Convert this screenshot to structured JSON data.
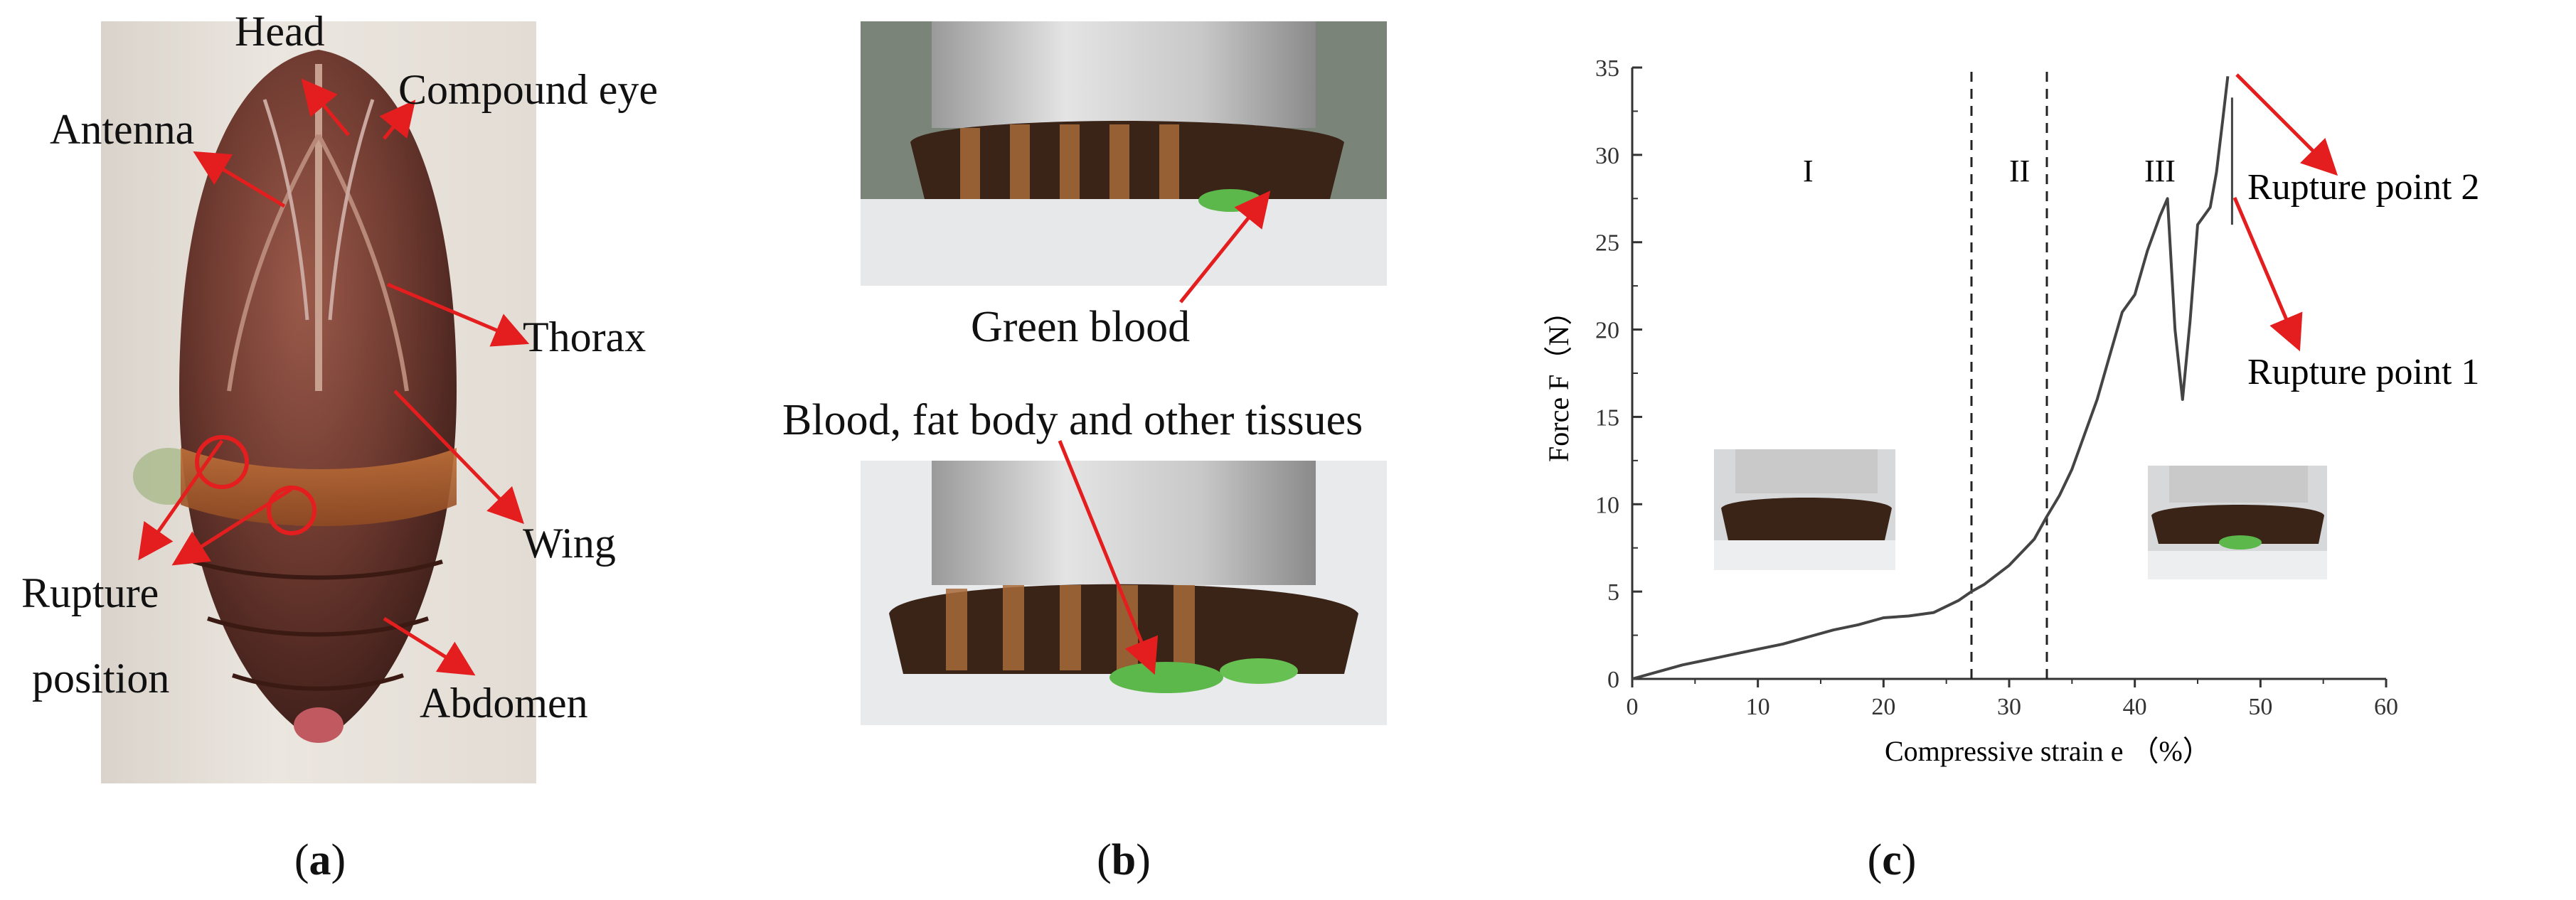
{
  "panel_a": {
    "labels": {
      "head": "Head",
      "compound_eye": "Compound eye",
      "antenna": "Antenna",
      "thorax": "Thorax",
      "wing": "Wing",
      "rupture": "Rupture",
      "position": "position",
      "abdomen": "Abdomen"
    },
    "caption": "a"
  },
  "panel_b": {
    "labels": {
      "green_blood": "Green blood",
      "blood_fat": "Blood, fat body and other tissues"
    },
    "caption": "b"
  },
  "panel_c": {
    "caption": "c",
    "chart_data": {
      "type": "line",
      "xlabel": "Compressive strain e （%）",
      "ylabel": "Force F（N）",
      "xlim": [
        0,
        60
      ],
      "ylim": [
        0,
        35
      ],
      "xticks": [
        "0",
        "10",
        "20",
        "30",
        "40",
        "50",
        "60"
      ],
      "yticks": [
        "0",
        "5",
        "10",
        "15",
        "20",
        "25",
        "30",
        "35"
      ],
      "vlines": [
        27,
        33
      ],
      "regions": [
        "I",
        "II",
        "III"
      ],
      "annotations": [
        "Rupture point 1",
        "Rupture point 2"
      ],
      "series": [
        {
          "x": [
            0,
            2,
            4,
            6,
            8,
            10,
            12,
            14,
            16,
            18,
            20,
            22,
            24,
            26,
            27,
            28,
            30,
            32,
            33,
            34,
            35,
            36,
            37,
            38,
            39,
            40,
            41,
            42,
            42.6,
            43.2,
            43.8,
            44.4,
            45,
            45.5,
            46,
            46.5,
            47,
            47.4
          ],
          "y": [
            0,
            0.4,
            0.8,
            1.1,
            1.4,
            1.7,
            2.0,
            2.4,
            2.8,
            3.1,
            3.5,
            3.6,
            3.8,
            4.5,
            5.0,
            5.4,
            6.5,
            8.0,
            9.3,
            10.5,
            12.0,
            14.0,
            16.0,
            18.5,
            21.0,
            22.0,
            24.5,
            26.5,
            27.5,
            20.0,
            16.0,
            20.5,
            26.0,
            26.5,
            27.0,
            29.0,
            32.0,
            34.5
          ]
        }
      ]
    }
  }
}
